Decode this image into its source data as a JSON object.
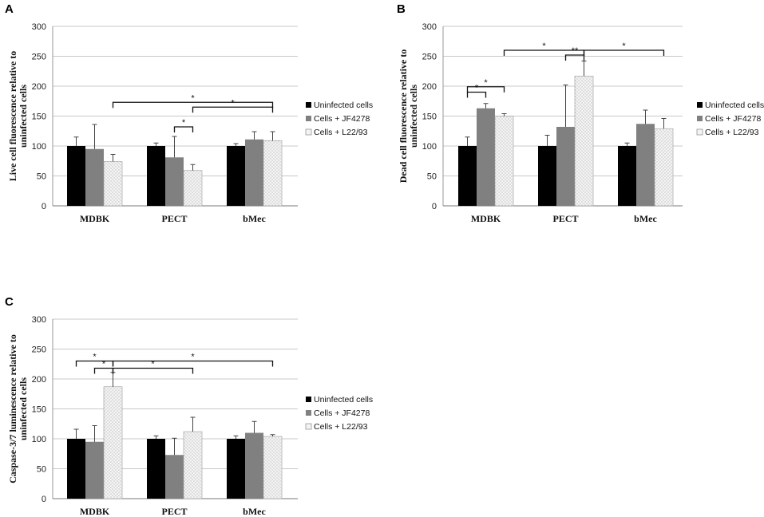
{
  "series_colors": [
    "#000000",
    "#808080",
    "#f2f2f2"
  ],
  "chart_data": [
    {
      "panel": "A",
      "type": "bar",
      "ylabel": "Live cell fluorescence relative to uninfected cells",
      "ylim": [
        0,
        300
      ],
      "yticks": [
        0,
        50,
        100,
        150,
        200,
        250,
        300
      ],
      "categories": [
        "MDBK",
        "PECT",
        "bMec"
      ],
      "series": [
        {
          "name": "Uninfected cells",
          "values": [
            100,
            100,
            100
          ],
          "errors": [
            15,
            5,
            4
          ]
        },
        {
          "name": "Cells + JF4278",
          "values": [
            95,
            81,
            111
          ],
          "errors": [
            41,
            35,
            13
          ]
        },
        {
          "name": "Cells + L22/93",
          "values": [
            74,
            59,
            109
          ],
          "errors": [
            12,
            10,
            15
          ]
        }
      ],
      "annotations": [
        {
          "label": "*",
          "from": [
            1,
            1
          ],
          "to": [
            1,
            2
          ],
          "y": 132
        },
        {
          "label": "*",
          "from": [
            0,
            2
          ],
          "to": [
            2,
            2
          ],
          "y": 173
        },
        {
          "label": "*",
          "from": [
            1,
            2
          ],
          "to": [
            2,
            2
          ],
          "y": 165
        }
      ]
    },
    {
      "panel": "B",
      "type": "bar",
      "ylabel": "Dead cell fluorescence relative to uninfected cells",
      "ylim": [
        0,
        300
      ],
      "yticks": [
        0,
        50,
        100,
        150,
        200,
        250,
        300
      ],
      "categories": [
        "MDBK",
        "PECT",
        "bMec"
      ],
      "series": [
        {
          "name": "Uninfected cells",
          "values": [
            100,
            100,
            100
          ],
          "errors": [
            15,
            18,
            5
          ]
        },
        {
          "name": "Cells + JF4278",
          "values": [
            163,
            132,
            137
          ],
          "errors": [
            8,
            70,
            23
          ]
        },
        {
          "name": "Cells + L22/93",
          "values": [
            150,
            217,
            129
          ],
          "errors": [
            4,
            25,
            17
          ]
        }
      ],
      "annotations": [
        {
          "label": "*",
          "from": [
            0,
            0
          ],
          "to": [
            0,
            1
          ],
          "y": 190
        },
        {
          "label": "*",
          "from": [
            0,
            0
          ],
          "to": [
            0,
            2
          ],
          "y": 199
        },
        {
          "label": "*",
          "from": [
            0,
            2
          ],
          "to": [
            1,
            2
          ],
          "y": 260
        },
        {
          "label": "**",
          "from": [
            1,
            1
          ],
          "to": [
            1,
            2
          ],
          "y": 252
        },
        {
          "label": "*",
          "from": [
            1,
            2
          ],
          "to": [
            2,
            2
          ],
          "y": 260
        }
      ]
    },
    {
      "panel": "C",
      "type": "bar",
      "ylabel": "Caspase-3/7 luminescence relative to uninfected cells",
      "ylim": [
        0,
        300
      ],
      "yticks": [
        0,
        50,
        100,
        150,
        200,
        250,
        300
      ],
      "categories": [
        "MDBK",
        "PECT",
        "bMec"
      ],
      "series": [
        {
          "name": "Uninfected cells",
          "values": [
            100,
            100,
            100
          ],
          "errors": [
            16,
            5,
            5
          ]
        },
        {
          "name": "Cells + JF4278",
          "values": [
            95,
            73,
            110
          ],
          "errors": [
            27,
            28,
            19
          ]
        },
        {
          "name": "Cells + L22/93",
          "values": [
            187,
            112,
            104
          ],
          "errors": [
            24,
            24,
            3
          ]
        }
      ],
      "annotations": [
        {
          "label": "*",
          "from": [
            0,
            0
          ],
          "to": [
            0,
            2
          ],
          "y": 230
        },
        {
          "label": "*",
          "from": [
            0,
            1
          ],
          "to": [
            0,
            2
          ],
          "y": 218
        },
        {
          "label": "*",
          "from": [
            0,
            2
          ],
          "to": [
            1,
            2
          ],
          "y": 218
        },
        {
          "label": "*",
          "from": [
            0,
            2
          ],
          "to": [
            2,
            2
          ],
          "y": 230
        }
      ]
    }
  ]
}
